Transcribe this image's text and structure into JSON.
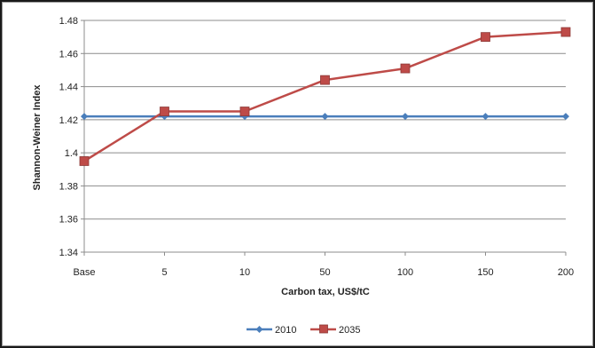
{
  "chart_data": {
    "type": "line",
    "title": "",
    "xlabel": "Carbon tax, US$/tC",
    "ylabel": "Shannon-Weiner Index",
    "categories": [
      "Base",
      "5",
      "10",
      "50",
      "100",
      "150",
      "200"
    ],
    "ylim": [
      1.34,
      1.48
    ],
    "yticks": [
      1.34,
      1.36,
      1.38,
      1.4,
      1.42,
      1.44,
      1.46,
      1.48
    ],
    "ytick_labels": [
      "1.34",
      "1.36",
      "1.38",
      "1.4",
      "1.42",
      "1.44",
      "1.46",
      "1.48"
    ],
    "grid": true,
    "legend_position": "bottom",
    "series": [
      {
        "name": "2010",
        "values": [
          1.422,
          1.422,
          1.422,
          1.422,
          1.422,
          1.422,
          1.422
        ],
        "color": "#4a7ebb",
        "marker": "diamond"
      },
      {
        "name": "2035",
        "values": [
          1.395,
          1.425,
          1.425,
          1.444,
          1.451,
          1.47,
          1.473
        ],
        "color": "#be4b48",
        "marker": "square"
      }
    ]
  }
}
